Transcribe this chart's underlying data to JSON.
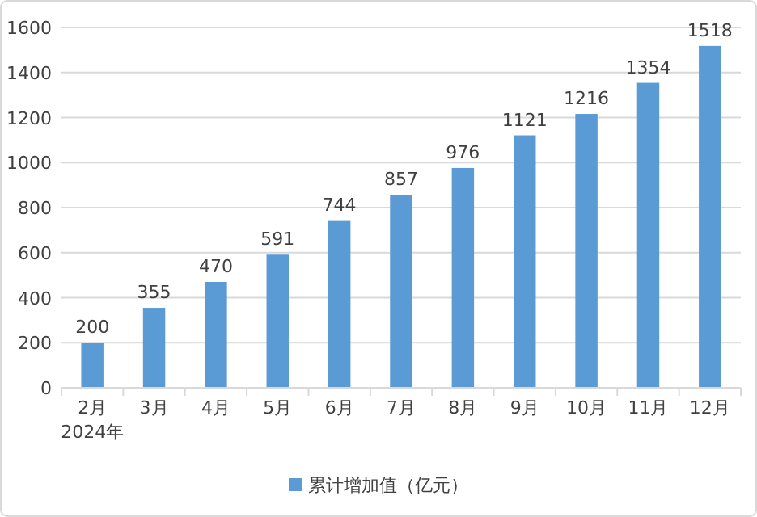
{
  "chart_data": {
    "type": "bar",
    "categories": [
      "2月",
      "3月",
      "4月",
      "5月",
      "6月",
      "7月",
      "8月",
      "9月",
      "10月",
      "11月",
      "12月"
    ],
    "series": [
      {
        "name": "累计增加值（亿元）",
        "color": "#5b9bd5",
        "values": [
          200,
          355,
          470,
          591,
          744,
          857,
          976,
          1121,
          1216,
          1354,
          1518
        ]
      }
    ],
    "ylim": [
      0,
      1600
    ],
    "yticks": [
      0,
      200,
      400,
      600,
      800,
      1000,
      1200,
      1400,
      1600
    ],
    "grid": "y",
    "legend": "bottom",
    "data_labels": true,
    "annotations": [
      "2024年"
    ]
  }
}
